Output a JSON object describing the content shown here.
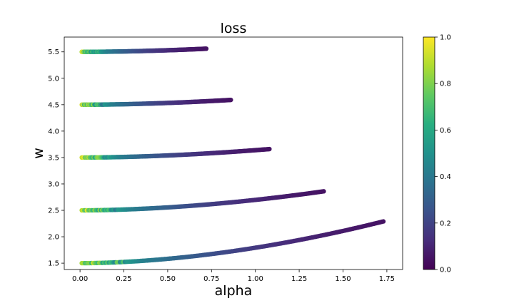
{
  "chart_data": {
    "type": "scatter",
    "title": "loss",
    "xlabel": "alpha",
    "ylabel": "w",
    "xlim": [
      -0.09,
      1.84
    ],
    "ylim": [
      1.38,
      5.78
    ],
    "x_ticks": [
      "0.00",
      "0.25",
      "0.50",
      "0.75",
      "1.00",
      "1.25",
      "1.50",
      "1.75"
    ],
    "y_ticks": [
      "1.5",
      "2.0",
      "2.5",
      "3.0",
      "3.5",
      "4.0",
      "4.5",
      "5.0",
      "5.5"
    ],
    "grid": false,
    "legend": "none",
    "colormap": "viridis",
    "colorbar": {
      "range": [
        0.0,
        1.0
      ],
      "ticks": [
        "0.0",
        "0.2",
        "0.4",
        "0.6",
        "0.8",
        "1.0"
      ],
      "position": "right"
    },
    "series": [
      {
        "w0": 1.5,
        "alpha_max": 1.73,
        "w_end": 2.29
      },
      {
        "w0": 2.5,
        "alpha_max": 1.39,
        "w_end": 2.86
      },
      {
        "w0": 3.5,
        "alpha_max": 1.08,
        "w_end": 3.66
      },
      {
        "w0": 4.5,
        "alpha_max": 0.86,
        "w_end": 4.59
      },
      {
        "w0": 5.5,
        "alpha_max": 0.72,
        "w_end": 5.56
      }
    ]
  }
}
